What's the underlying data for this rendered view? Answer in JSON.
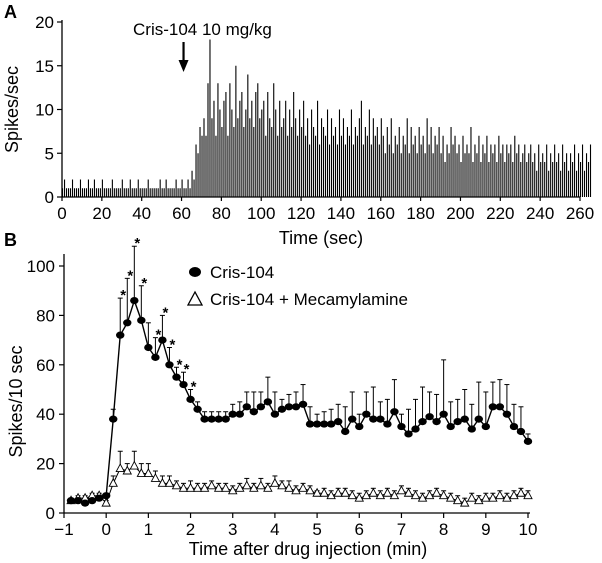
{
  "panels": {
    "a": {
      "letter": "A"
    },
    "b": {
      "letter": "B"
    }
  },
  "chart_data": [
    {
      "type": "bar",
      "panel": "A",
      "xlabel": "Time (sec)",
      "ylabel": "Spikes/sec",
      "xlim": [
        0,
        260
      ],
      "ylim": [
        0,
        20
      ],
      "xticks": [
        0,
        20,
        40,
        60,
        80,
        100,
        120,
        140,
        160,
        180,
        200,
        220,
        240,
        260
      ],
      "yticks": [
        0,
        5,
        10,
        15,
        20
      ],
      "bin_width": 1,
      "annotation": {
        "text": "Cris-104 10 mg/kg",
        "x": 60
      },
      "values": [
        1,
        2,
        1,
        1,
        1,
        2,
        1,
        1,
        1,
        2,
        1,
        1,
        1,
        2,
        1,
        1,
        2,
        1,
        1,
        1,
        2,
        1,
        1,
        1,
        1,
        2,
        1,
        1,
        1,
        1,
        2,
        1,
        1,
        1,
        2,
        1,
        1,
        1,
        2,
        1,
        1,
        1,
        1,
        2,
        1,
        1,
        1,
        1,
        1,
        2,
        1,
        1,
        2,
        1,
        1,
        1,
        1,
        2,
        1,
        1,
        2,
        1,
        1,
        2,
        1,
        3,
        2,
        6,
        5,
        8,
        7,
        9,
        7,
        13,
        18,
        9,
        11,
        7,
        13,
        10,
        8,
        11,
        12,
        7,
        13,
        10,
        8,
        15,
        9,
        11,
        12,
        8,
        10,
        14,
        9,
        11,
        8,
        12,
        13,
        9,
        10,
        11,
        7,
        12,
        9,
        8,
        13,
        10,
        7,
        11,
        8,
        9,
        11,
        7,
        10,
        8,
        12,
        9,
        7,
        10,
        8,
        11,
        7,
        9,
        6,
        10,
        8,
        7,
        11,
        6,
        9,
        8,
        7,
        10,
        6,
        9,
        7,
        8,
        6,
        10,
        7,
        9,
        6,
        8,
        7,
        10,
        6,
        8,
        7,
        9,
        11,
        6,
        8,
        7,
        10,
        6,
        9,
        7,
        8,
        6,
        9,
        7,
        5,
        8,
        6,
        9,
        5,
        7,
        6,
        8,
        5,
        7,
        6,
        9,
        5,
        8,
        6,
        7,
        5,
        8,
        6,
        7,
        5,
        9,
        6,
        8,
        5,
        7,
        6,
        8,
        5,
        7,
        4,
        6,
        5,
        8,
        6,
        7,
        5,
        6,
        4,
        7,
        5,
        6,
        5,
        8,
        4,
        6,
        5,
        7,
        4,
        6,
        5,
        7,
        4,
        6,
        5,
        6,
        4,
        7,
        5,
        6,
        4,
        6,
        5,
        6,
        4,
        7,
        5,
        6,
        4,
        5,
        6,
        4,
        5,
        6,
        4,
        5,
        3,
        6,
        4,
        5,
        4,
        6,
        3,
        5,
        4,
        6,
        4,
        5,
        3,
        6,
        4,
        5,
        3,
        5,
        4,
        6,
        3,
        5,
        4,
        6,
        3,
        5,
        4,
        6
      ]
    },
    {
      "type": "line",
      "panel": "B",
      "xlabel": "Time after drug injection (min)",
      "ylabel": "Spikes/10 sec",
      "xlim": [
        -1,
        10
      ],
      "ylim": [
        0,
        100
      ],
      "xticks": [
        -1,
        0,
        1,
        2,
        3,
        4,
        5,
        6,
        7,
        8,
        9,
        10
      ],
      "yticks": [
        0,
        20,
        40,
        60,
        80,
        100
      ],
      "legend_position": "top-right",
      "series": [
        {
          "name": "Cris-104",
          "marker": "filled-circle",
          "color": "#000000",
          "x": [
            -0.833,
            -0.667,
            -0.5,
            -0.333,
            -0.167,
            0.0,
            0.167,
            0.333,
            0.5,
            0.667,
            0.833,
            1.0,
            1.167,
            1.333,
            1.5,
            1.667,
            1.833,
            2.0,
            2.167,
            2.333,
            2.5,
            2.667,
            2.833,
            3.0,
            3.167,
            3.333,
            3.5,
            3.667,
            3.833,
            4.0,
            4.167,
            4.333,
            4.5,
            4.667,
            4.833,
            5.0,
            5.167,
            5.333,
            5.5,
            5.667,
            5.833,
            6.0,
            6.167,
            6.333,
            6.5,
            6.667,
            6.833,
            7.0,
            7.167,
            7.333,
            7.5,
            7.667,
            7.833,
            8.0,
            8.167,
            8.333,
            8.5,
            8.667,
            8.833,
            9.0,
            9.167,
            9.333,
            9.5,
            9.667,
            9.833,
            10.0
          ],
          "y": [
            5,
            5,
            4,
            5,
            6,
            7,
            38,
            72,
            77,
            86,
            78,
            67,
            63,
            70,
            60,
            55,
            52,
            46,
            42,
            38,
            38,
            38,
            38,
            40,
            40,
            43,
            41,
            43,
            45,
            40,
            42,
            43,
            43,
            44,
            36,
            36,
            36,
            36,
            37,
            33,
            38,
            35,
            40,
            38,
            38,
            36,
            41,
            35,
            32,
            34,
            37,
            39,
            37,
            40,
            35,
            37,
            38,
            34,
            38,
            35,
            43,
            43,
            40,
            35,
            33,
            29
          ],
          "err": [
            1,
            1,
            1,
            1,
            1,
            1,
            4,
            15,
            18,
            22,
            14,
            10,
            8,
            10,
            7,
            4,
            5,
            4,
            3,
            3,
            3,
            3,
            3,
            4,
            5,
            6,
            8,
            6,
            10,
            9,
            4,
            5,
            6,
            8,
            7,
            4,
            5,
            6,
            7,
            10,
            11,
            5,
            9,
            13,
            7,
            10,
            13,
            5,
            10,
            12,
            14,
            10,
            11,
            22,
            10,
            9,
            12,
            10,
            15,
            14,
            10,
            11,
            12,
            9,
            10,
            3
          ],
          "significant": [
            false,
            false,
            false,
            false,
            false,
            false,
            false,
            true,
            true,
            true,
            true,
            false,
            true,
            true,
            true,
            true,
            true,
            true,
            false,
            false,
            false,
            false,
            false,
            false,
            false,
            false,
            false,
            false,
            false,
            false,
            false,
            false,
            false,
            false,
            false,
            false,
            false,
            false,
            false,
            false,
            false,
            false,
            false,
            false,
            false,
            false,
            false,
            false,
            false,
            false,
            false,
            false,
            false,
            false,
            false,
            false,
            false,
            false,
            false,
            false,
            false,
            false,
            false,
            false,
            false,
            false
          ]
        },
        {
          "name": "Cris-104 + Mecamylamine",
          "marker": "open-triangle",
          "color": "#000000",
          "x": [
            -0.833,
            -0.667,
            -0.5,
            -0.333,
            -0.167,
            0.0,
            0.167,
            0.333,
            0.5,
            0.667,
            0.833,
            1.0,
            1.167,
            1.333,
            1.5,
            1.667,
            1.833,
            2.0,
            2.167,
            2.333,
            2.5,
            2.667,
            2.833,
            3.0,
            3.167,
            3.333,
            3.5,
            3.667,
            3.833,
            4.0,
            4.167,
            4.333,
            4.5,
            4.667,
            4.833,
            5.0,
            5.167,
            5.333,
            5.5,
            5.667,
            5.833,
            6.0,
            6.167,
            6.333,
            6.5,
            6.667,
            6.833,
            7.0,
            7.167,
            7.333,
            7.5,
            7.667,
            7.833,
            8.0,
            8.167,
            8.333,
            8.5,
            8.667,
            8.833,
            9.0,
            9.167,
            9.333,
            9.5,
            9.667,
            9.833,
            10.0
          ],
          "y": [
            5,
            6,
            6,
            7,
            7,
            4,
            12,
            18,
            17,
            19,
            16,
            16,
            14,
            12,
            12,
            11,
            10,
            10,
            10,
            10,
            11,
            10,
            10,
            9,
            10,
            11,
            10,
            11,
            10,
            12,
            11,
            10,
            9,
            10,
            9,
            8,
            8,
            7,
            8,
            8,
            7,
            6,
            7,
            8,
            7,
            8,
            7,
            9,
            8,
            7,
            6,
            7,
            8,
            7,
            6,
            5,
            4,
            6,
            5,
            6,
            6,
            7,
            6,
            7,
            8,
            7
          ],
          "err": [
            1,
            1,
            1,
            1,
            1,
            1,
            3,
            7,
            3,
            6,
            4,
            4,
            3,
            3,
            3,
            2,
            2,
            3,
            2,
            2,
            2,
            2,
            2,
            2,
            2,
            3,
            2,
            3,
            2,
            3,
            2,
            3,
            2,
            2,
            2,
            1,
            2,
            2,
            2,
            2,
            2,
            2,
            2,
            2,
            2,
            2,
            2,
            2,
            2,
            2,
            2,
            2,
            2,
            2,
            2,
            2,
            2,
            2,
            2,
            2,
            2,
            2,
            2,
            2,
            2,
            2
          ]
        }
      ]
    }
  ]
}
